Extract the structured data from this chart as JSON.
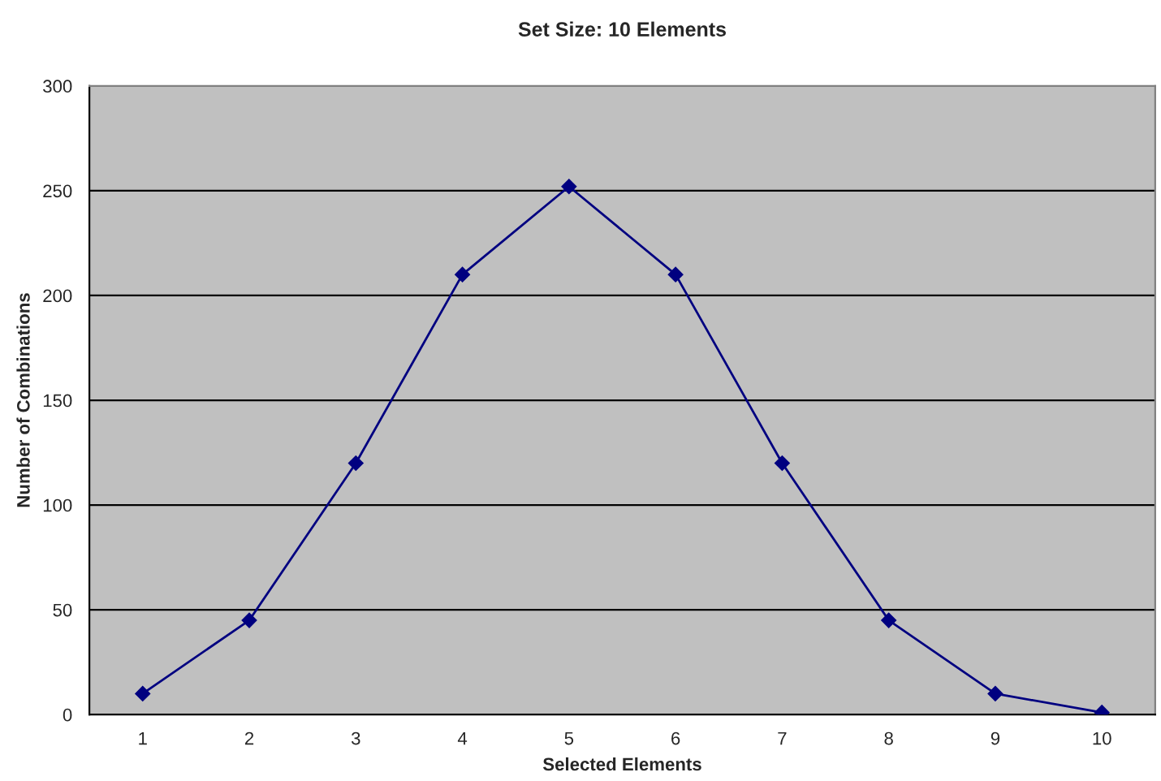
{
  "chart_data": {
    "type": "line",
    "title": "Set Size: 10 Elements",
    "xlabel": "Selected Elements",
    "ylabel": "Number of Combinations",
    "categories": [
      "1",
      "2",
      "3",
      "4",
      "5",
      "6",
      "7",
      "8",
      "9",
      "10"
    ],
    "series": [
      {
        "color": "#000080",
        "values": [
          10,
          45,
          120,
          210,
          252,
          210,
          120,
          45,
          10,
          1
        ]
      }
    ],
    "ylim": [
      0,
      300
    ],
    "yticks": [
      0,
      50,
      100,
      150,
      200,
      250,
      300
    ],
    "grid": "y",
    "legend": false,
    "marker": "diamond",
    "line_style": "solid"
  }
}
